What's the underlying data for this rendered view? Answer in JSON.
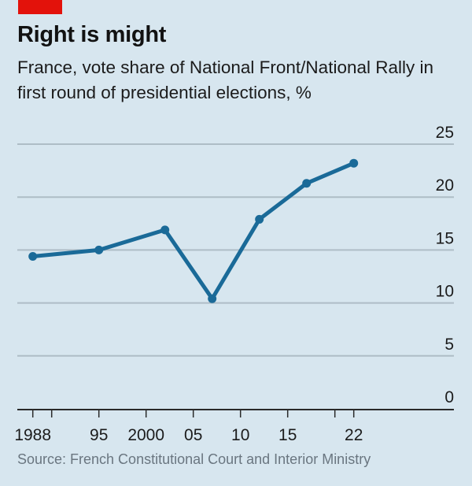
{
  "header": {
    "title": "Right is might",
    "subtitle": "France, vote share of National Front/National Rally in first round of presidential elections, %"
  },
  "source": "Source: French Constitutional Court and Interior Ministry",
  "colors": {
    "background": "#d7e6ef",
    "accent_tag": "#e3120b",
    "line": "#1a6a98",
    "grid": "#aebdc6",
    "axis": "#2a2a2a"
  },
  "chart_data": {
    "type": "line",
    "title": "Right is might",
    "subtitle": "France, vote share of National Front/National Rally in first round of presidential elections, %",
    "xlabel": "",
    "ylabel": "%",
    "x": [
      1988,
      1995,
      2002,
      2007,
      2012,
      2017,
      2022
    ],
    "series": [
      {
        "name": "National Front/National Rally vote share",
        "values": [
          14.4,
          15.0,
          16.9,
          10.4,
          17.9,
          21.3,
          23.2
        ]
      }
    ],
    "xlim": [
      1987,
      2028
    ],
    "ylim": [
      0,
      25
    ],
    "yticks": [
      0,
      5,
      10,
      15,
      20,
      25
    ],
    "ytick_labels": [
      "0",
      "5",
      "10",
      "15",
      "20",
      "25"
    ],
    "xticks": [
      1988,
      1990,
      1995,
      2000,
      2005,
      2010,
      2015,
      2020,
      2022
    ],
    "xtick_labels": [
      {
        "year": 1988,
        "label": "1988"
      },
      {
        "year": 1995,
        "label": "95"
      },
      {
        "year": 2000,
        "label": "2000"
      },
      {
        "year": 2005,
        "label": "05"
      },
      {
        "year": 2010,
        "label": "10"
      },
      {
        "year": 2015,
        "label": "15"
      },
      {
        "year": 2022,
        "label": "22"
      }
    ],
    "grid": true,
    "y_axis_side": "right",
    "legend": "none",
    "source": "Source: French Constitutional Court and Interior Ministry"
  }
}
